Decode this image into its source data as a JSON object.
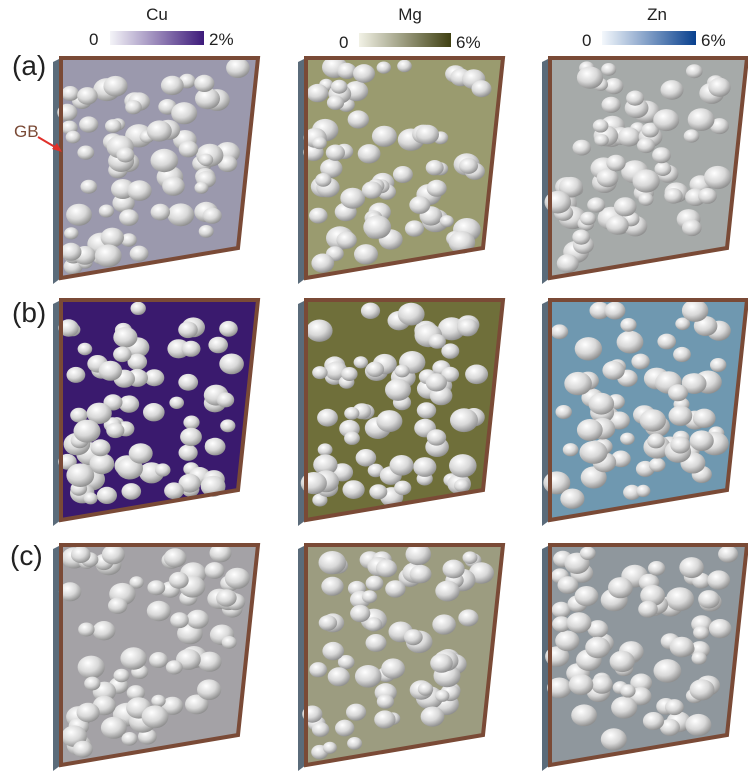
{
  "colorbars": [
    {
      "element": "Cu",
      "min_label": "0",
      "max_label": "2%",
      "colors": [
        "#f4f4f8",
        "#3d1a7a"
      ]
    },
    {
      "element": "Mg",
      "min_label": "0",
      "max_label": "6%",
      "colors": [
        "#f2f2e6",
        "#3f4012"
      ]
    },
    {
      "element": "Zn",
      "min_label": "0",
      "max_label": "6%",
      "colors": [
        "#f4f8fc",
        "#08408e"
      ]
    }
  ],
  "rows": [
    {
      "label": "(a)",
      "fills": [
        "#9b99ad",
        "#9a9b6f",
        "#a6aaa9"
      ]
    },
    {
      "label": "(b)",
      "fills": [
        "#3a1a6e",
        "#6f6f3a",
        "#6f98b0"
      ]
    },
    {
      "label": "(c)",
      "fills": [
        "#a4a2a6",
        "#9c9c80",
        "#8f979d"
      ]
    }
  ],
  "grain_boundary_label": "GB",
  "colors": {
    "frame": "#7a4a36",
    "particle": "#d7d7d7",
    "arrow": "#e0302a"
  }
}
